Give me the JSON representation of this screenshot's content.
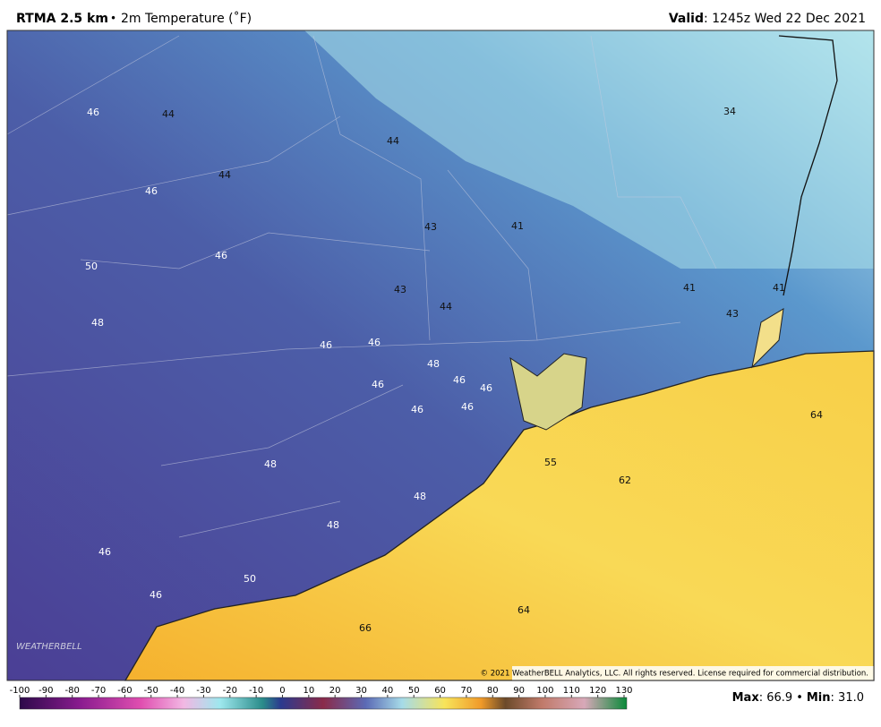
{
  "header": {
    "model": "RTMA 2.5 km",
    "separator": "•",
    "product": "2m Temperature (˚F)",
    "valid_label": "Valid",
    "valid_value": ": 1245z Wed 22 Dec 2021"
  },
  "map_labels": [
    "46",
    "44",
    "44",
    "46",
    "50",
    "46",
    "48",
    "44",
    "43",
    "41",
    "43",
    "44",
    "34",
    "41",
    "41",
    "43",
    "46",
    "46",
    "48",
    "46",
    "46",
    "46",
    "46",
    "46",
    "64",
    "55",
    "62",
    "48",
    "48",
    "48",
    "46",
    "50",
    "46",
    "64",
    "66"
  ],
  "copyright": "© 2021 WeatherBELL Analytics, LLC. All rights reserved. License required for commercial distribution.",
  "logo": "WEATHERBELL",
  "colorbar": {
    "ticks": [
      -100,
      -90,
      -80,
      -70,
      -60,
      -50,
      -40,
      -30,
      -20,
      -10,
      0,
      10,
      20,
      30,
      40,
      50,
      60,
      70,
      80,
      90,
      100,
      110,
      120,
      130
    ]
  },
  "footer": {
    "max_label": "Max",
    "max_value": ": 66.9",
    "separator": "•",
    "min_label": "Min",
    "min_value": ": 31.0"
  }
}
